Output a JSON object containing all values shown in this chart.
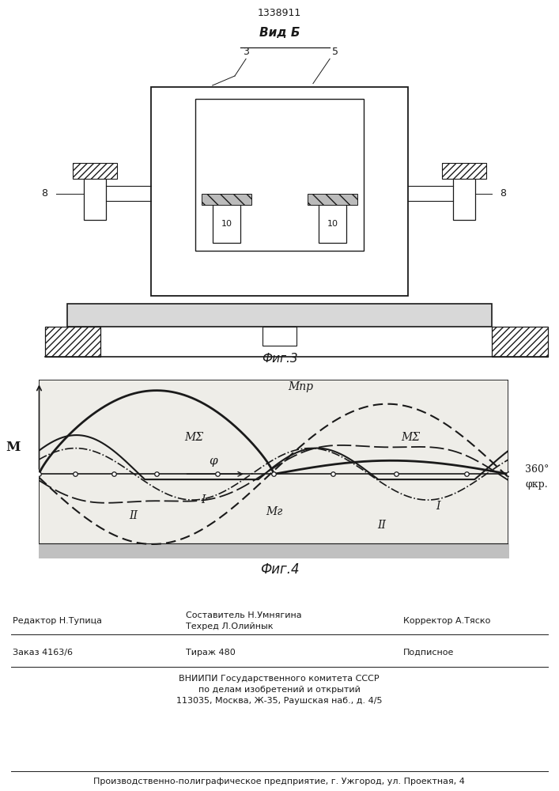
{
  "patent_number": "1338911",
  "fig3_title": "Вид Б",
  "fig3_caption": "Фиг.3",
  "fig4_caption": "Фиг.4",
  "line_color": "#1a1a1a",
  "axis_label_M": "М",
  "axis_label_phi": "φ",
  "label_360": "360°",
  "label_phi_kr": "φкр.",
  "label_Mpr": "Мпр",
  "label_MSigma": "МΣ",
  "label_Mg": "Мг",
  "label_I": "I",
  "label_II": "II",
  "footer_editor": "Редактор Н.Тупица",
  "footer_composer": "Составитель Н.Умнягина",
  "footer_techred": "Техред Л.Олийнык",
  "footer_corrector": "Корректор А.Тяско",
  "footer_order": "Заказ 4163/6",
  "footer_tirazh": "Тираж 480",
  "footer_podpisnoe": "Подписное",
  "footer_vniipи": "ВНИИПИ Государственного комитета СССР",
  "footer_po_delam": "по делам изобретений и открытий",
  "footer_address": "113035, Москва, Ж-35, Раушская наб., д. 4/5",
  "footer_factory": "Производственно-полиграфическое предприятие, г. Ужгород, ул. Проектная, 4"
}
